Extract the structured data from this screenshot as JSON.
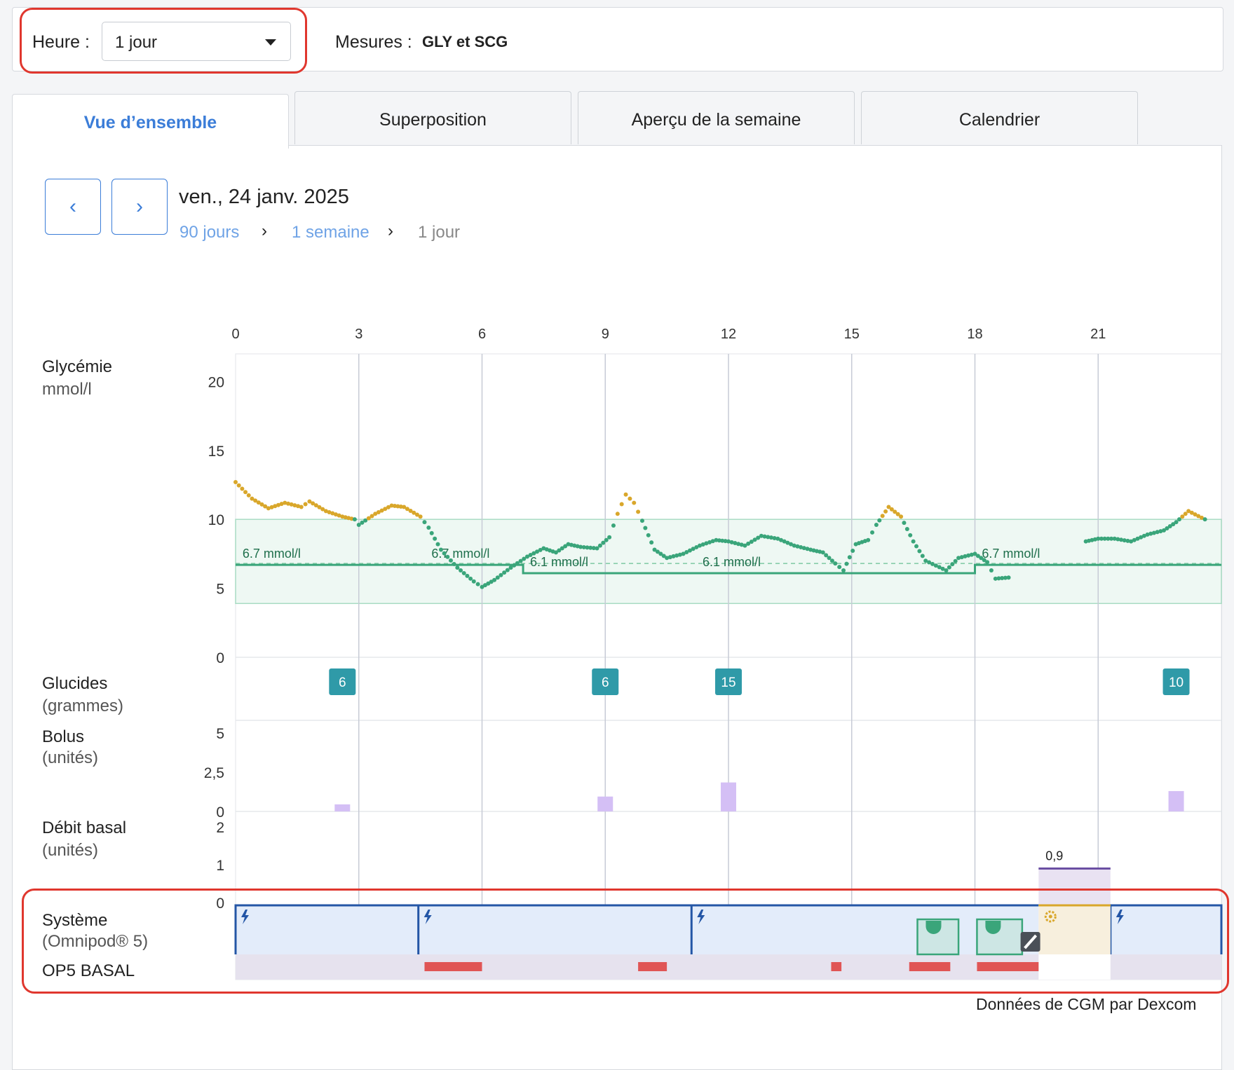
{
  "filters": {
    "heure_label": "Heure :",
    "heure_value": "1 jour",
    "mesures_label": "Mesures :",
    "mesures_value": "GLY et SCG"
  },
  "tabs": [
    {
      "label": "Vue d’ensemble",
      "active": true
    },
    {
      "label": "Superposition",
      "active": false
    },
    {
      "label": "Aperçu de la semaine",
      "active": false
    },
    {
      "label": "Calendrier",
      "active": false
    }
  ],
  "nav": {
    "prev_icon": "chevron-left-icon",
    "next_icon": "chevron-right-icon",
    "date": "ven., 24 janv. 2025",
    "breadcrumb": [
      "90 jours",
      "1 semaine",
      "1 jour"
    ]
  },
  "sections": {
    "glycemie": {
      "title": "Glycémie",
      "unit": "mmol/l"
    },
    "glucides": {
      "title": "Glucides",
      "unit": "(grammes)"
    },
    "bolus": {
      "title": "Bolus",
      "unit": "(unités)"
    },
    "basal": {
      "title": "Débit basal",
      "unit": "(unités)"
    },
    "systeme": {
      "title": "Système",
      "unit": "(Omnipod® 5)"
    },
    "op5": {
      "title": "OP5 BASAL"
    }
  },
  "footer": "Données de CGM par Dexcom",
  "colors": {
    "accent": "#3b7dd8",
    "in_range": "#3aa57a",
    "high": "#d9a72b",
    "target_band": "#eef8f3",
    "carb_badge": "#2f9aa8",
    "bolus": "#d4bff5",
    "system_line": "#2456a6",
    "system_fill": "#e3ecfa",
    "alert": "#e05555",
    "highlight": "#e0372e"
  },
  "chart_data": {
    "type": "scatter",
    "x_ticks": [
      "0",
      "3",
      "6",
      "9",
      "12",
      "15",
      "18",
      "21"
    ],
    "x_range": [
      0,
      24
    ],
    "glucose": {
      "y_ticks": [
        "0",
        "5",
        "10",
        "15",
        "20"
      ],
      "ylim": [
        0,
        22
      ],
      "target_range": [
        3.9,
        10.0
      ],
      "target_lines": [
        {
          "start": 0,
          "end": 7,
          "value": 6.7,
          "label": "6.7 mmol/l"
        },
        {
          "start": 7,
          "end": 18,
          "value": 6.1,
          "label": "6.1 mmol/l"
        },
        {
          "start": 18,
          "end": 24,
          "value": 6.7,
          "label": "6.7 mmol/l"
        }
      ],
      "target_label_positions": [
        {
          "x": 0.1,
          "label": "6.7 mmol/l"
        },
        {
          "x": 4.7,
          "label": "6.7 mmol/l"
        },
        {
          "x": 7.1,
          "label": "6.1 mmol/l"
        },
        {
          "x": 11.3,
          "label": "6.1 mmol/l"
        },
        {
          "x": 18.1,
          "label": "6.7 mmol/l"
        }
      ],
      "curve": [
        [
          0.0,
          12.7
        ],
        [
          0.4,
          11.5
        ],
        [
          0.8,
          10.8
        ],
        [
          1.2,
          11.2
        ],
        [
          1.6,
          10.9
        ],
        [
          1.8,
          11.3
        ],
        [
          2.2,
          10.6
        ],
        [
          2.6,
          10.2
        ],
        [
          2.9,
          10.0
        ],
        [
          3.0,
          9.6
        ],
        [
          3.4,
          10.4
        ],
        [
          3.8,
          11.0
        ],
        [
          4.1,
          10.9
        ],
        [
          4.5,
          10.2
        ],
        [
          4.7,
          9.4
        ],
        [
          5.0,
          7.8
        ],
        [
          5.4,
          6.5
        ],
        [
          5.8,
          5.5
        ],
        [
          6.0,
          5.1
        ],
        [
          6.3,
          5.6
        ],
        [
          6.7,
          6.5
        ],
        [
          7.1,
          7.3
        ],
        [
          7.5,
          7.9
        ],
        [
          7.8,
          7.6
        ],
        [
          8.1,
          8.2
        ],
        [
          8.4,
          8.0
        ],
        [
          8.8,
          7.9
        ],
        [
          9.1,
          8.7
        ],
        [
          9.3,
          10.4
        ],
        [
          9.5,
          11.8
        ],
        [
          9.7,
          11.2
        ],
        [
          9.9,
          9.9
        ],
        [
          10.2,
          7.8
        ],
        [
          10.5,
          7.2
        ],
        [
          10.9,
          7.5
        ],
        [
          11.3,
          8.1
        ],
        [
          11.7,
          8.5
        ],
        [
          12.0,
          8.4
        ],
        [
          12.4,
          8.1
        ],
        [
          12.8,
          8.8
        ],
        [
          13.2,
          8.6
        ],
        [
          13.6,
          8.1
        ],
        [
          14.0,
          7.8
        ],
        [
          14.3,
          7.6
        ],
        [
          14.6,
          6.8
        ],
        [
          14.8,
          6.3
        ],
        [
          15.1,
          8.2
        ],
        [
          15.4,
          8.5
        ],
        [
          15.6,
          9.6
        ],
        [
          15.9,
          10.9
        ],
        [
          16.2,
          10.2
        ],
        [
          16.5,
          8.4
        ],
        [
          16.8,
          7.0
        ],
        [
          17.3,
          6.3
        ],
        [
          17.6,
          7.2
        ],
        [
          18.0,
          7.5
        ],
        [
          18.3,
          6.9
        ],
        [
          18.5,
          5.7
        ],
        [
          18.9,
          5.8
        ],
        [
          20.7,
          8.4
        ],
        [
          21.0,
          8.6
        ],
        [
          21.4,
          8.6
        ],
        [
          21.8,
          8.4
        ],
        [
          22.2,
          8.9
        ],
        [
          22.6,
          9.2
        ],
        [
          22.9,
          9.8
        ],
        [
          23.2,
          10.6
        ],
        [
          23.6,
          10.0
        ]
      ],
      "high_threshold": 10.0
    },
    "carbs": [
      {
        "x": 2.6,
        "value": 6
      },
      {
        "x": 9.0,
        "value": 6
      },
      {
        "x": 12.0,
        "value": 15
      },
      {
        "x": 22.9,
        "value": 10
      }
    ],
    "bolus": {
      "y_ticks": [
        "0",
        "2,5",
        "5"
      ],
      "ylim": [
        0,
        5
      ],
      "values": [
        {
          "x": 2.6,
          "value": 0.45
        },
        {
          "x": 9.0,
          "value": 0.95
        },
        {
          "x": 12.0,
          "value": 1.85
        },
        {
          "x": 22.9,
          "value": 1.3
        }
      ]
    },
    "basal": {
      "y_ticks": [
        "0",
        "1",
        "2"
      ],
      "ylim": [
        0,
        2
      ],
      "manual_segments": [
        {
          "start": 19.55,
          "end": 21.3,
          "value": 0.9,
          "label": "0,9"
        }
      ]
    },
    "system": {
      "automated_segments": [
        {
          "start": 0,
          "end": 4.45
        },
        {
          "start": 4.45,
          "end": 11.1
        },
        {
          "start": 11.1,
          "end": 19.55
        },
        {
          "start": 21.3,
          "end": 24
        }
      ],
      "manual_segment": {
        "start": 19.55,
        "end": 21.3
      },
      "limited_segments": [
        {
          "start": 16.6,
          "end": 17.6
        },
        {
          "start": 18.05,
          "end": 19.15
        }
      ],
      "pod_events": [
        19.35
      ],
      "alerts": [
        {
          "start": 4.6,
          "end": 6.0
        },
        {
          "start": 9.8,
          "end": 10.5
        },
        {
          "start": 14.5,
          "end": 14.75
        },
        {
          "start": 16.4,
          "end": 17.4
        },
        {
          "start": 18.05,
          "end": 19.55
        }
      ]
    }
  }
}
